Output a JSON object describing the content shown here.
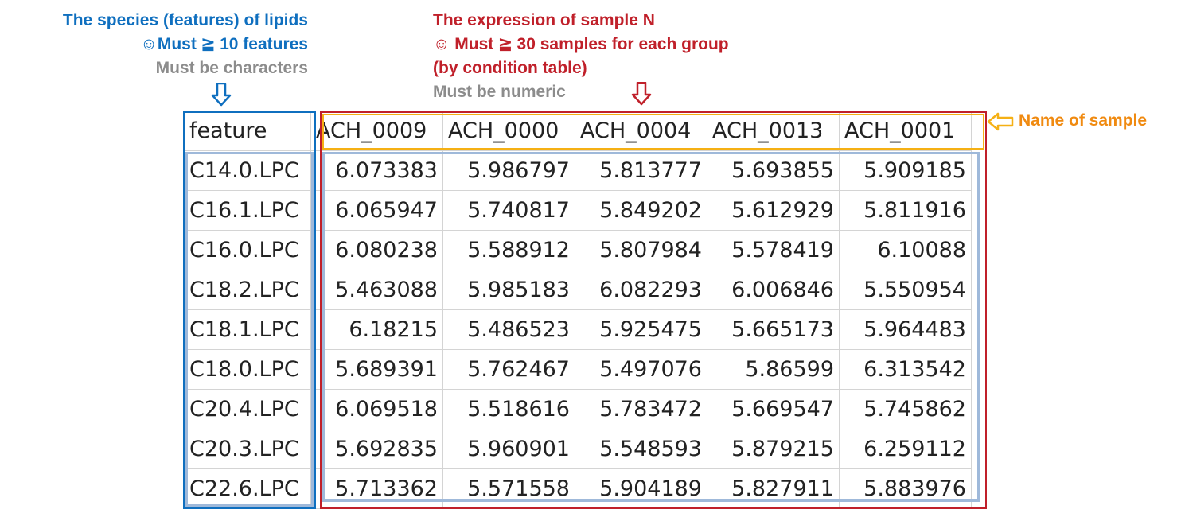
{
  "annotations": {
    "features": {
      "line1": "The species (features) of lipids",
      "line2": "☺Must ≧  10 features",
      "line3": "Must be characters"
    },
    "samples": {
      "line1": "The expression of sample N",
      "line2": "☺ Must ≧ 30 samples for each group",
      "line3": "(by condition table)",
      "line4": "Must be numeric"
    },
    "sample_name": "Name of sample"
  },
  "colors": {
    "feature_blue": "#0F6FBF",
    "sample_red": "#C0202A",
    "name_orange": "#F08A10",
    "header_box_yellow": "#F5B014",
    "note_gray": "#8C8C8C",
    "inner_box_lightblue": "#9FB9DA"
  },
  "table": {
    "header": [
      "feature",
      "ACH_0009",
      "ACH_0000",
      "ACH_0004",
      "ACH_0013",
      "ACH_0001"
    ],
    "rows": [
      [
        "C14.0.LPC",
        "6.073383",
        "5.986797",
        "5.813777",
        "5.693855",
        "5.909185"
      ],
      [
        "C16.1.LPC",
        "6.065947",
        "5.740817",
        "5.849202",
        "5.612929",
        "5.811916"
      ],
      [
        "C16.0.LPC",
        "6.080238",
        "5.588912",
        "5.807984",
        "5.578419",
        "6.10088"
      ],
      [
        "C18.2.LPC",
        "5.463088",
        "5.985183",
        "6.082293",
        "6.006846",
        "5.550954"
      ],
      [
        "C18.1.LPC",
        "6.18215",
        "5.486523",
        "5.925475",
        "5.665173",
        "5.964483"
      ],
      [
        "C18.0.LPC",
        "5.689391",
        "5.762467",
        "5.497076",
        "5.86599",
        "6.313542"
      ],
      [
        "C20.4.LPC",
        "6.069518",
        "5.518616",
        "5.783472",
        "5.669547",
        "5.745862"
      ],
      [
        "C20.3.LPC",
        "5.692835",
        "5.960901",
        "5.548593",
        "5.879215",
        "6.259112"
      ],
      [
        "C22.6.LPC",
        "5.713362",
        "5.571558",
        "5.904189",
        "5.827911",
        "5.883976"
      ]
    ]
  }
}
